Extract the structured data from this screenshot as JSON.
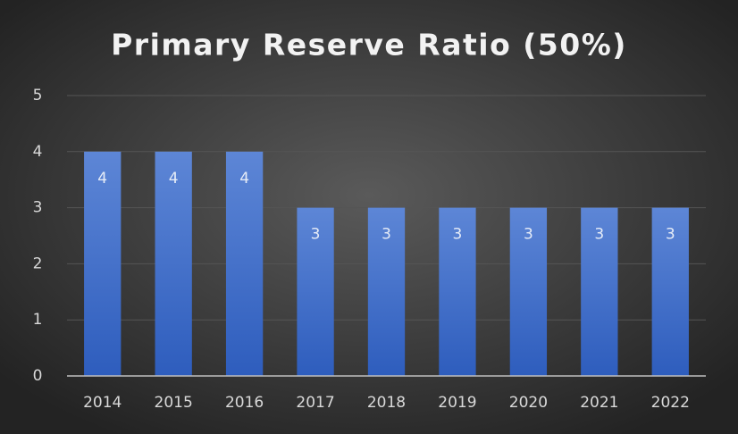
{
  "chart_data": {
    "type": "bar",
    "title": "Primary Reserve Ratio (50%)",
    "categories": [
      "2014",
      "2015",
      "2016",
      "2017",
      "2018",
      "2019",
      "2020",
      "2021",
      "2022"
    ],
    "values": [
      4,
      4,
      4,
      3,
      3,
      3,
      3,
      3,
      3
    ],
    "color": "#4472c4",
    "ylim": [
      0,
      5
    ],
    "yticks": [
      0,
      1,
      2,
      3,
      4,
      5
    ],
    "grid": true,
    "data_labels": true
  }
}
